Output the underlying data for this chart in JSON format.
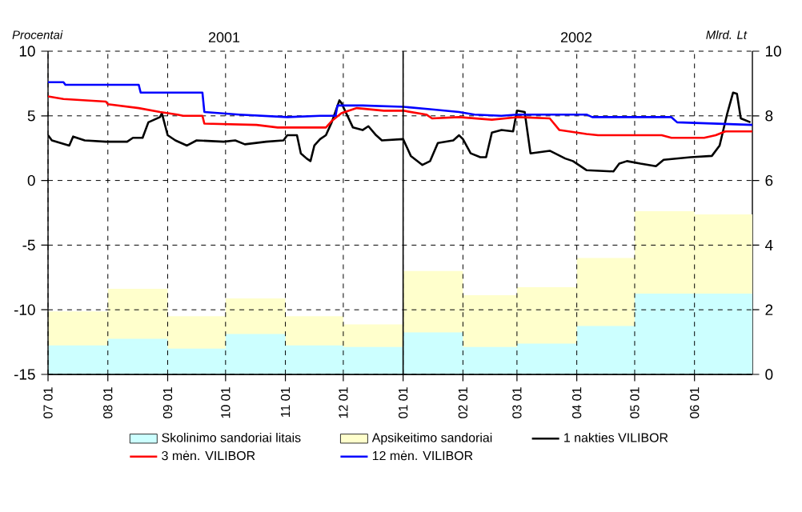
{
  "chart_data": {
    "type": "line",
    "ylabel": "Procentai",
    "y2label": "Mlrd. Lt",
    "annotations": [
      "2001",
      "2002"
    ],
    "xlim": [
      "2001-07-01",
      "2002-07-01"
    ],
    "xticks": [
      {
        "value": "2001-07-01",
        "label": "07 01"
      },
      {
        "value": "2001-08-01",
        "label": "08 01"
      },
      {
        "value": "2001-09-01",
        "label": "09 01"
      },
      {
        "value": "2001-10-01",
        "label": "10 01"
      },
      {
        "value": "2001-11-01",
        "label": "11 01"
      },
      {
        "value": "2001-12-01",
        "label": "12 01"
      },
      {
        "value": "2002-01-01",
        "label": "01 01"
      },
      {
        "value": "2002-02-01",
        "label": "02 01"
      },
      {
        "value": "2002-03-01",
        "label": "03 01"
      },
      {
        "value": "2002-04-01",
        "label": "04 01"
      },
      {
        "value": "2002-05-01",
        "label": "05 01"
      },
      {
        "value": "2002-06-01",
        "label": "06 01"
      }
    ],
    "ylim": [
      -15,
      10
    ],
    "yticks": [
      -15,
      -10,
      -5,
      0,
      5,
      10
    ],
    "y2lim": [
      0,
      10
    ],
    "y2ticks": [
      0,
      2,
      4,
      6,
      8,
      10
    ],
    "grid": true,
    "legend": "bottom",
    "stacked": true,
    "line_style": "solid",
    "ref_lines": [
      {
        "axis": "x",
        "value": "2002-01-01",
        "color": "#000000"
      }
    ],
    "series": [
      {
        "name": "Skolinimo sandoriai litais",
        "type": "area",
        "axis": "y2",
        "color": "#ccffff",
        "x": [
          "2001-07-01",
          "2001-08-01",
          "2001-08-01",
          "2001-09-01",
          "2001-09-01",
          "2001-10-01",
          "2001-10-01",
          "2001-11-01",
          "2001-11-01",
          "2001-12-01",
          "2001-12-01",
          "2002-01-01",
          "2002-01-01",
          "2002-02-01",
          "2002-02-01",
          "2002-03-01",
          "2002-03-01",
          "2002-04-01",
          "2002-04-01",
          "2002-05-01",
          "2002-05-01",
          "2002-06-01",
          "2002-06-01",
          "2002-07-01"
        ],
        "values": [
          0.9,
          0.9,
          1.1,
          1.1,
          0.8,
          0.8,
          1.25,
          1.25,
          0.9,
          0.9,
          0.85,
          0.85,
          1.3,
          1.3,
          0.85,
          0.85,
          0.95,
          0.95,
          1.5,
          1.5,
          2.5,
          2.5,
          2.5,
          2.5
        ]
      },
      {
        "name": "Apsikeitimo sandoriai",
        "type": "area",
        "axis": "y2",
        "color": "#ffffcc",
        "x": [
          "2001-07-01",
          "2001-08-01",
          "2001-08-01",
          "2001-09-01",
          "2001-09-01",
          "2001-10-01",
          "2001-10-01",
          "2001-11-01",
          "2001-11-01",
          "2001-12-01",
          "2001-12-01",
          "2002-01-01",
          "2002-01-01",
          "2002-02-01",
          "2002-02-01",
          "2002-03-01",
          "2002-03-01",
          "2002-04-01",
          "2002-04-01",
          "2002-05-01",
          "2002-05-01",
          "2002-06-01",
          "2002-06-01",
          "2002-07-01"
        ],
        "values": [
          1.05,
          1.05,
          1.55,
          1.55,
          1.0,
          1.0,
          1.1,
          1.1,
          0.9,
          0.9,
          0.7,
          0.7,
          1.9,
          1.9,
          1.6,
          1.6,
          1.75,
          1.75,
          2.1,
          2.1,
          2.55,
          2.55,
          2.45,
          2.45
        ]
      },
      {
        "name": "1 nakties VILIBOR",
        "color": "#000000",
        "x": [
          "2001-07-01",
          "2001-07-03",
          "2001-07-12",
          "2001-07-14",
          "2001-07-20",
          "2001-07-31",
          "2001-08-11",
          "2001-08-14",
          "2001-08-19",
          "2001-08-22",
          "2001-08-28",
          "2001-08-29",
          "2001-09-01",
          "2001-09-05",
          "2001-09-11",
          "2001-09-16",
          "2001-09-30",
          "2001-10-06",
          "2001-10-11",
          "2001-10-22",
          "2001-10-31",
          "2001-11-02",
          "2001-11-07",
          "2001-11-09",
          "2001-11-12",
          "2001-11-14",
          "2001-11-16",
          "2001-11-19",
          "2001-11-22",
          "2001-11-25",
          "2001-11-29",
          "2001-11-30",
          "2001-12-06",
          "2001-12-11",
          "2001-12-14",
          "2001-12-18",
          "2001-12-21",
          "2002-01-01",
          "2002-01-05",
          "2002-01-11",
          "2002-01-15",
          "2002-01-19",
          "2002-01-27",
          "2002-01-30",
          "2002-02-01",
          "2002-02-05",
          "2002-02-10",
          "2002-02-13",
          "2002-02-16",
          "2002-02-21",
          "2002-02-27",
          "2002-03-01",
          "2002-03-05",
          "2002-03-08",
          "2002-03-18",
          "2002-03-26",
          "2002-03-30",
          "2002-04-06",
          "2002-04-20",
          "2002-04-23",
          "2002-04-27",
          "2002-05-04",
          "2002-05-12",
          "2002-05-16",
          "2002-05-30",
          "2002-06-10",
          "2002-06-14",
          "2002-06-18",
          "2002-06-21",
          "2002-06-23",
          "2002-06-25",
          "2002-06-30"
        ],
        "values": [
          3.5,
          3.1,
          2.7,
          3.4,
          3.1,
          3.0,
          3.0,
          3.3,
          3.3,
          4.5,
          4.9,
          5.2,
          3.5,
          3.1,
          2.7,
          3.1,
          3.0,
          3.1,
          2.8,
          3.0,
          3.1,
          3.5,
          3.5,
          2.1,
          1.7,
          1.5,
          2.7,
          3.2,
          3.5,
          4.5,
          6.2,
          6.0,
          4.1,
          3.9,
          4.2,
          3.5,
          3.1,
          3.2,
          1.9,
          1.2,
          1.5,
          2.9,
          3.1,
          3.5,
          3.2,
          2.1,
          1.8,
          1.8,
          3.7,
          3.9,
          3.8,
          5.4,
          5.3,
          2.1,
          2.3,
          1.7,
          1.5,
          0.8,
          0.7,
          1.3,
          1.5,
          1.3,
          1.1,
          1.6,
          1.8,
          1.9,
          2.7,
          5.2,
          6.8,
          6.7,
          4.8,
          4.5
        ]
      },
      {
        "name": "3 mėn. VILIBOR",
        "color": "#ff0000",
        "x": [
          "2001-07-01",
          "2001-07-09",
          "2001-07-31",
          "2001-08-01",
          "2001-08-17",
          "2001-08-28",
          "2001-09-06",
          "2001-09-09",
          "2001-09-19",
          "2001-09-20",
          "2001-10-17",
          "2001-10-28",
          "2001-11-22",
          "2001-11-25",
          "2001-11-30",
          "2001-12-08",
          "2001-12-22",
          "2002-01-01",
          "2002-01-13",
          "2002-01-16",
          "2002-01-30",
          "2002-02-16",
          "2002-03-01",
          "2002-03-18",
          "2002-03-23",
          "2002-04-06",
          "2002-04-12",
          "2002-05-15",
          "2002-05-20",
          "2002-06-06",
          "2002-06-12",
          "2002-06-17",
          "2002-07-01"
        ],
        "values": [
          6.5,
          6.3,
          6.1,
          5.9,
          5.6,
          5.3,
          5.1,
          5.0,
          5.0,
          4.4,
          4.3,
          4.1,
          4.1,
          4.6,
          5.2,
          5.6,
          5.4,
          5.4,
          5.1,
          4.8,
          4.9,
          4.7,
          4.9,
          4.8,
          3.9,
          3.6,
          3.5,
          3.5,
          3.3,
          3.3,
          3.5,
          3.8,
          3.8
        ]
      },
      {
        "name": "12 mėn. VILIBOR",
        "color": "#0000ff",
        "x": [
          "2001-07-01",
          "2001-07-09",
          "2001-07-10",
          "2001-08-17",
          "2001-08-18",
          "2001-09-19",
          "2001-09-20",
          "2001-10-08",
          "2001-11-02",
          "2001-11-19",
          "2001-11-27",
          "2001-11-28",
          "2001-12-11",
          "2002-01-01",
          "2002-01-16",
          "2002-01-30",
          "2002-02-07",
          "2002-02-21",
          "2002-03-01",
          "2002-04-06",
          "2002-04-09",
          "2002-05-20",
          "2002-05-23",
          "2002-07-01"
        ],
        "values": [
          7.6,
          7.6,
          7.4,
          7.4,
          6.8,
          6.8,
          5.3,
          5.1,
          4.9,
          5.0,
          5.0,
          5.8,
          5.8,
          5.7,
          5.5,
          5.3,
          5.1,
          5.0,
          5.1,
          5.1,
          4.9,
          4.9,
          4.5,
          4.3
        ]
      }
    ]
  }
}
